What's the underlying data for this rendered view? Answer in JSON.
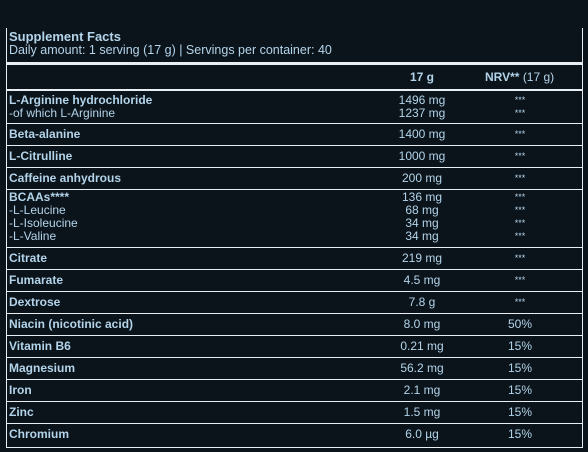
{
  "header": {
    "title": "Supplement Facts",
    "subtitle": "Daily amount: 1 serving (17 g) | Servings per container: 40"
  },
  "table": {
    "columns": {
      "amount": "17 g",
      "nrv": "NRV**",
      "nrv_basis": "(17 g)"
    },
    "rows": [
      {
        "lines": [
          {
            "name": "L-Arginine hydrochloride",
            "amount": "1496 mg",
            "nrv": "***"
          },
          {
            "name": "-of which L-Arginine",
            "amount": "1237 mg",
            "nrv": "***"
          }
        ]
      },
      {
        "lines": [
          {
            "name": "Beta-alanine",
            "amount": "1400 mg",
            "nrv": "***"
          }
        ]
      },
      {
        "lines": [
          {
            "name": "L-Citrulline",
            "amount": "1000 mg",
            "nrv": "***"
          }
        ]
      },
      {
        "lines": [
          {
            "name": "Caffeine anhydrous",
            "amount": "200 mg",
            "nrv": "***"
          }
        ]
      },
      {
        "lines": [
          {
            "name": "BCAAs****",
            "amount": "136 mg",
            "nrv": "***"
          },
          {
            "name": "-L-Leucine",
            "amount": "68 mg",
            "nrv": "***"
          },
          {
            "name": "-L-Isoleucine",
            "amount": "34 mg",
            "nrv": "***"
          },
          {
            "name": "-L-Valine",
            "amount": "34 mg",
            "nrv": "***"
          }
        ]
      },
      {
        "lines": [
          {
            "name": "Citrate",
            "amount": "219 mg",
            "nrv": "***"
          }
        ]
      },
      {
        "lines": [
          {
            "name": "Fumarate",
            "amount": "4.5 mg",
            "nrv": "***"
          }
        ]
      },
      {
        "lines": [
          {
            "name": "Dextrose",
            "amount": "7.8 g",
            "nrv": "***"
          }
        ]
      },
      {
        "lines": [
          {
            "name": "Niacin (nicotinic acid)",
            "amount": "8.0 mg",
            "nrv": "50%"
          }
        ]
      },
      {
        "lines": [
          {
            "name": "Vitamin B6",
            "amount": "0.21 mg",
            "nrv": "15%"
          }
        ]
      },
      {
        "lines": [
          {
            "name": "Magnesium",
            "amount": "56.2 mg",
            "nrv": "15%"
          }
        ]
      },
      {
        "lines": [
          {
            "name": "Iron",
            "amount": "2.1 mg",
            "nrv": "15%"
          }
        ]
      },
      {
        "lines": [
          {
            "name": "Zinc",
            "amount": "1.5 mg",
            "nrv": "15%"
          }
        ]
      },
      {
        "lines": [
          {
            "name": "Chromium",
            "amount": "6.0 µg",
            "nrv": "15%"
          }
        ]
      }
    ]
  }
}
